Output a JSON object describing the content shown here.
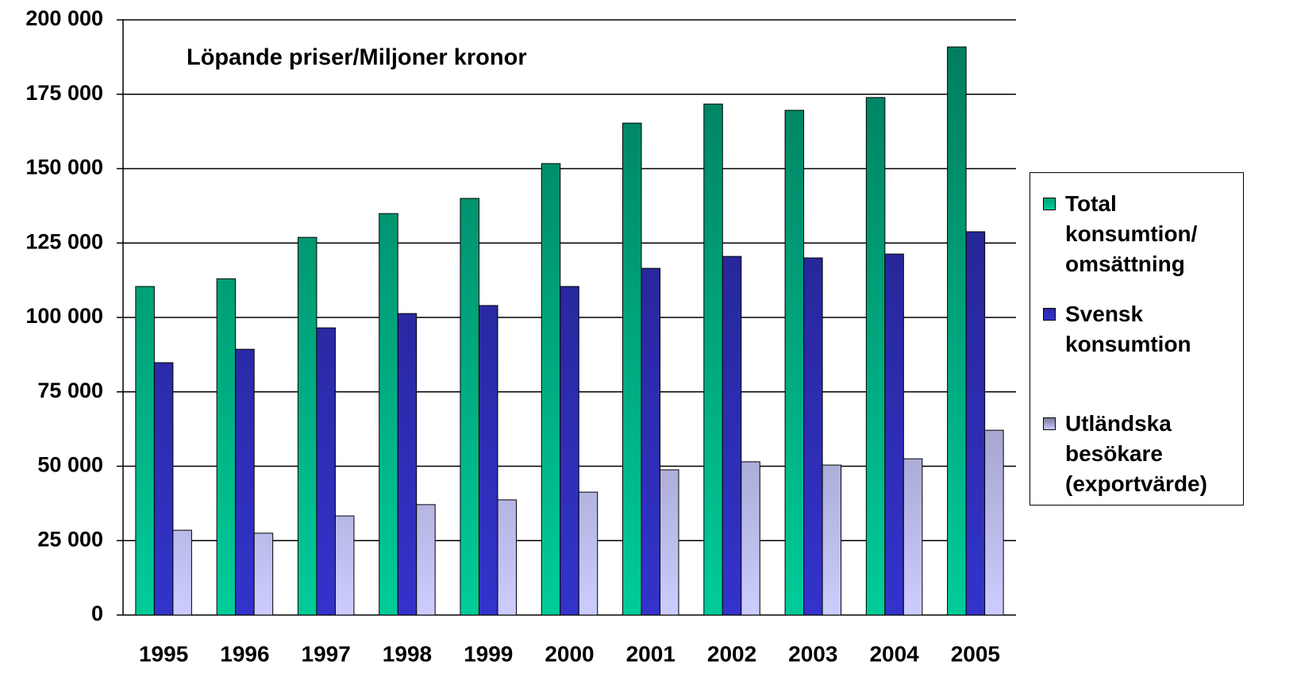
{
  "chart_data": {
    "type": "bar",
    "title": "Löpande priser/Miljoner kronor",
    "categories": [
      "1995",
      "1996",
      "1997",
      "1998",
      "1999",
      "2000",
      "2001",
      "2002",
      "2003",
      "2004",
      "2005"
    ],
    "series": [
      {
        "name": "Total konsumtion/ omsättning",
        "color": "#00cc99",
        "values": [
          110400,
          113000,
          126900,
          134900,
          140000,
          151700,
          165300,
          171700,
          169600,
          173900,
          190900
        ]
      },
      {
        "name": "Svensk konsumtion",
        "color": "#3333cc",
        "values": [
          84800,
          89300,
          96500,
          101300,
          104000,
          110400,
          116500,
          120500,
          120000,
          121300,
          128800
        ]
      },
      {
        "name": "Utländska besökare (exportvärde)",
        "color": "#ccccff",
        "values": [
          28500,
          27500,
          33300,
          37100,
          38700,
          41300,
          48800,
          51500,
          50400,
          52500,
          62100
        ]
      }
    ],
    "ylim": [
      0,
      200000
    ],
    "yticks": [
      {
        "value": 0,
        "label": "0"
      },
      {
        "value": 25000,
        "label": "25 000"
      },
      {
        "value": 50000,
        "label": "50 000"
      },
      {
        "value": 75000,
        "label": "75 000"
      },
      {
        "value": 100000,
        "label": "100 000"
      },
      {
        "value": 125000,
        "label": "125 000"
      },
      {
        "value": 150000,
        "label": "150 000"
      },
      {
        "value": 175000,
        "label": "175 000"
      },
      {
        "value": 200000,
        "label": "200 000"
      }
    ],
    "grid": true,
    "legend": "right"
  }
}
